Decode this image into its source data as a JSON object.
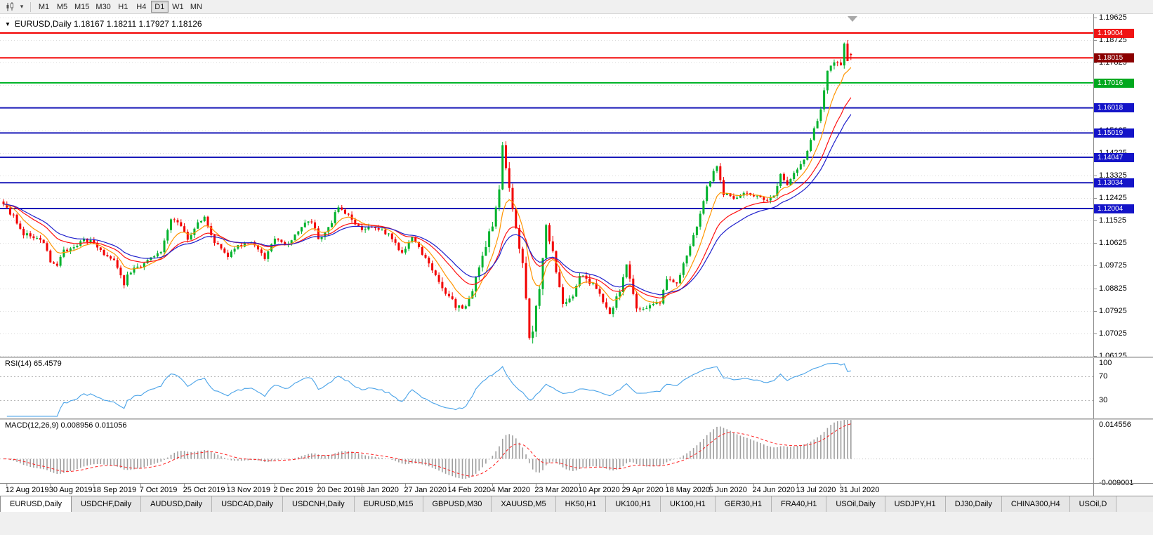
{
  "toolbar": {
    "icons": {
      "chart_type": "candlestick-chart-icon",
      "chart_type_caret": "▾"
    },
    "timeframes": [
      "M1",
      "M5",
      "M15",
      "M30",
      "H1",
      "H4",
      "D1",
      "W1",
      "MN"
    ],
    "active_timeframe": "D1"
  },
  "chart": {
    "window_menu_icon": "▼",
    "title_line": "EURUSD,Daily 1.18167 1.18211 1.17927 1.18126"
  },
  "rsi": {
    "label": "RSI(14) 65.4579",
    "axis": [
      {
        "text": "100",
        "value": 100
      },
      {
        "text": "70",
        "value": 70
      },
      {
        "text": "30",
        "value": 30
      }
    ],
    "level_lines": [
      70,
      30
    ],
    "line_color": "#4aa3e8"
  },
  "macd": {
    "label": "MACD(12,26,9) 0.008956 0.011056",
    "axis": [
      {
        "text": "0.014556",
        "value": 0.014556
      },
      {
        "text": "-0.009001",
        "value": -0.009001
      }
    ],
    "histogram_color": "#9e9e9e",
    "signal_color": "#ff2020"
  },
  "price_axis": {
    "labels": [
      "1.19625",
      "1.18725",
      "1.17825",
      "1.16925",
      "1.16025",
      "1.15125",
      "1.14225",
      "1.13325",
      "1.12425",
      "1.11525",
      "1.10625",
      "1.09725",
      "1.08825",
      "1.07925",
      "1.07025",
      "1.06125"
    ]
  },
  "date_axis": [
    {
      "label": "12 Aug 2019",
      "bar": 1
    },
    {
      "label": "30 Aug 2019",
      "bar": 14
    },
    {
      "label": "18 Sep 2019",
      "bar": 27
    },
    {
      "label": "7 Oct 2019",
      "bar": 41
    },
    {
      "label": "25 Oct 2019",
      "bar": 54
    },
    {
      "label": "13 Nov 2019",
      "bar": 67
    },
    {
      "label": "2 Dec 2019",
      "bar": 81
    },
    {
      "label": "20 Dec 2019",
      "bar": 94
    },
    {
      "label": "8 Jan 2020",
      "bar": 107
    },
    {
      "label": "27 Jan 2020",
      "bar": 120
    },
    {
      "label": "14 Feb 2020",
      "bar": 133
    },
    {
      "label": "4 Mar 2020",
      "bar": 146
    },
    {
      "label": "23 Mar 2020",
      "bar": 159
    },
    {
      "label": "10 Apr 2020",
      "bar": 172
    },
    {
      "label": "29 Apr 2020",
      "bar": 185
    },
    {
      "label": "18 May 2020",
      "bar": 198
    },
    {
      "label": "5 Jun 2020",
      "bar": 211
    },
    {
      "label": "24 Jun 2020",
      "bar": 224
    },
    {
      "label": "13 Jul 2020",
      "bar": 237
    },
    {
      "label": "31 Jul 2020",
      "bar": 250
    }
  ],
  "tabs": {
    "active_index": 0,
    "items": [
      "EURUSD,Daily",
      "USDCHF,Daily",
      "AUDUSD,Daily",
      "USDCAD,Daily",
      "USDCNH,Daily",
      "EURUSD,M15",
      "GBPUSD,M30",
      "XAUUSD,M5",
      "HK50,H1",
      "UK100,H1",
      "UK100,H1",
      "GER30,H1",
      "FRA40,H1",
      "USOil,Daily",
      "USDJPY,H1",
      "DJ30,Daily",
      "CHINA300,H4",
      "USOil,D"
    ]
  },
  "chart_data": {
    "type": "candlestick",
    "symbol": "EURUSD",
    "timeframe": "Daily",
    "title": "EURUSD,Daily",
    "current_bar": {
      "open": 1.18167,
      "high": 1.18211,
      "low": 1.17927,
      "close": 1.18126
    },
    "bar_count": 254,
    "y_axis": {
      "min": 1.06096,
      "max": 1.19648,
      "tick_step": 0.009
    },
    "x_axis": {
      "first_label": "12 Aug 2019",
      "last_label": "31 Jul 2020"
    },
    "close_anchors": [
      [
        0,
        1.1212
      ],
      [
        3,
        1.117
      ],
      [
        6,
        1.11
      ],
      [
        9,
        1.1085
      ],
      [
        12,
        1.106
      ],
      [
        14,
        1.0992
      ],
      [
        16,
        1.097
      ],
      [
        18,
        1.1035
      ],
      [
        21,
        1.104
      ],
      [
        24,
        1.1073
      ],
      [
        26,
        1.1068
      ],
      [
        28,
        1.104
      ],
      [
        30,
        1.1015
      ],
      [
        33,
        1.0995
      ],
      [
        36,
        1.09
      ],
      [
        37,
        1.0935
      ],
      [
        39,
        1.0965
      ],
      [
        41,
        1.097
      ],
      [
        44,
        1.1
      ],
      [
        47,
        1.103
      ],
      [
        50,
        1.1165
      ],
      [
        53,
        1.113
      ],
      [
        55,
        1.108
      ],
      [
        58,
        1.114
      ],
      [
        60,
        1.116
      ],
      [
        63,
        1.107
      ],
      [
        67,
        1.101
      ],
      [
        70,
        1.105
      ],
      [
        74,
        1.1062
      ],
      [
        78,
        1.1
      ],
      [
        81,
        1.1078
      ],
      [
        85,
        1.1055
      ],
      [
        89,
        1.113
      ],
      [
        92,
        1.1148
      ],
      [
        94,
        1.108
      ],
      [
        97,
        1.112
      ],
      [
        100,
        1.121
      ],
      [
        103,
        1.1172
      ],
      [
        107,
        1.1112
      ],
      [
        111,
        1.113
      ],
      [
        115,
        1.1095
      ],
      [
        119,
        1.1022
      ],
      [
        122,
        1.1085
      ],
      [
        126,
        1.1
      ],
      [
        130,
        1.0915
      ],
      [
        133,
        1.084
      ],
      [
        137,
        1.079
      ],
      [
        140,
        1.088
      ],
      [
        143,
        1.1026
      ],
      [
        146,
        1.1135
      ],
      [
        148,
        1.1284
      ],
      [
        149,
        1.1448
      ],
      [
        151,
        1.127
      ],
      [
        153,
        1.1105
      ],
      [
        155,
        1.099
      ],
      [
        157,
        1.069
      ],
      [
        158,
        1.0725
      ],
      [
        160,
        1.088
      ],
      [
        162,
        1.114
      ],
      [
        164,
        1.103
      ],
      [
        167,
        1.0815
      ],
      [
        170,
        1.086
      ],
      [
        172,
        1.0935
      ],
      [
        175,
        1.091
      ],
      [
        178,
        1.0862
      ],
      [
        181,
        1.0778
      ],
      [
        184,
        1.0875
      ],
      [
        186,
        1.0975
      ],
      [
        189,
        1.08
      ],
      [
        193,
        1.081
      ],
      [
        196,
        1.0825
      ],
      [
        198,
        1.092
      ],
      [
        201,
        1.09
      ],
      [
        204,
        1.101
      ],
      [
        207,
        1.1135
      ],
      [
        210,
        1.1285
      ],
      [
        213,
        1.1372
      ],
      [
        215,
        1.1258
      ],
      [
        218,
        1.1245
      ],
      [
        221,
        1.1262
      ],
      [
        224,
        1.125
      ],
      [
        227,
        1.1232
      ],
      [
        230,
        1.1252
      ],
      [
        232,
        1.133
      ],
      [
        234,
        1.13
      ],
      [
        236,
        1.1342
      ],
      [
        239,
        1.1388
      ],
      [
        242,
        1.152
      ],
      [
        244,
        1.159
      ],
      [
        246,
        1.1748
      ],
      [
        248,
        1.1788
      ],
      [
        249,
        1.1778
      ],
      [
        250,
        1.1762
      ],
      [
        251,
        1.1863
      ],
      [
        252,
        1.178
      ],
      [
        253,
        1.1813
      ]
    ],
    "volatility_anchors": [
      [
        0,
        1.0
      ],
      [
        125,
        1.0
      ],
      [
        133,
        1.6
      ],
      [
        145,
        2.0
      ],
      [
        160,
        2.2
      ],
      [
        170,
        1.5
      ],
      [
        185,
        1.2
      ],
      [
        205,
        1.0
      ],
      [
        240,
        1.1
      ],
      [
        253,
        1.2
      ]
    ],
    "horizontal_levels": [
      {
        "text": "1.19004",
        "value": 1.19004,
        "line_color": "#f20000",
        "badge_color": "#f01414"
      },
      {
        "text": "1.18015",
        "value": 1.18015,
        "line_color": "#f20000",
        "badge_color": "#8b0000"
      },
      {
        "text": "1.17016",
        "value": 1.17016,
        "line_color": "#00b428",
        "badge_color": "#00a81e"
      },
      {
        "text": "1.16018",
        "value": 1.16018,
        "line_color": "#1a1ab9",
        "badge_color": "#1414c8"
      },
      {
        "text": "1.15019",
        "value": 1.15019,
        "line_color": "#1a1ab9",
        "badge_color": "#1414c8"
      },
      {
        "text": "1.14047",
        "value": 1.14047,
        "line_color": "#1a1ab9",
        "badge_color": "#1414c8"
      },
      {
        "text": "1.13034",
        "value": 1.13034,
        "line_color": "#1a1ab9",
        "badge_color": "#1414c8"
      },
      {
        "text": "1.12004",
        "value": 1.12004,
        "line_color": "#1a1ab9",
        "badge_color": "#1414c8"
      }
    ],
    "moving_averages": [
      {
        "type": "ema",
        "period": 8,
        "color": "#ff9500"
      },
      {
        "type": "ema",
        "period": 18,
        "color": "#ff1010"
      },
      {
        "type": "ema",
        "period": 25,
        "color": "#2020cc"
      }
    ],
    "oscillators": {
      "rsi": {
        "period": 14,
        "current": 65.4579
      },
      "macd": {
        "fast": 12,
        "slow": 26,
        "signal": 9,
        "current_macd": 0.008956,
        "current_signal": 0.011056,
        "scale_max": 0.014556,
        "scale_min": -0.009001
      }
    },
    "colors": {
      "up": "#00b22c",
      "down": "#f20000",
      "grid": "#d9d9d9",
      "background": "#ffffff"
    }
  }
}
